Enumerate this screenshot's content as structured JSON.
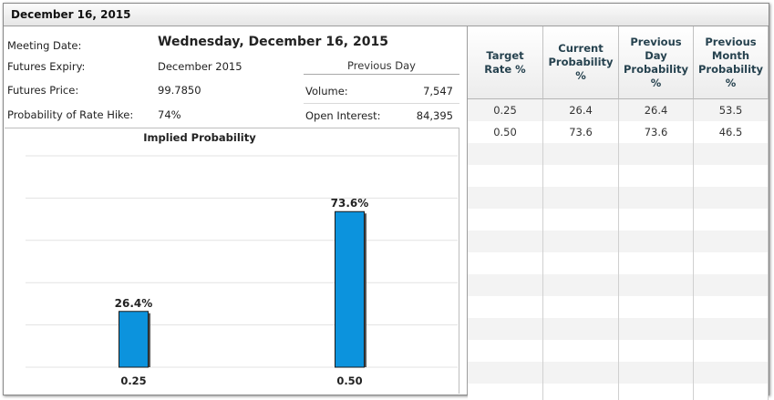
{
  "header": {
    "title": "December 16, 2015"
  },
  "info": {
    "meeting_date_label": "Meeting Date:",
    "meeting_date_value": "Wednesday, December 16, 2015",
    "futures_expiry_label": "Futures Expiry:",
    "futures_expiry_value": "December 2015",
    "futures_price_label": "Futures Price:",
    "futures_price_value": "99.7850",
    "rate_hike_label": "Probability of Rate Hike:",
    "rate_hike_value": "74%",
    "previous_day_heading": "Previous Day",
    "volume_label": "Volume:",
    "volume_value": "7,547",
    "open_interest_label": "Open Interest:",
    "open_interest_value": "84,395"
  },
  "table": {
    "headers": [
      [
        "Target",
        "Rate %"
      ],
      [
        "Current",
        "Probability",
        "%"
      ],
      [
        "Previous",
        "Day",
        "Probability",
        "%"
      ],
      [
        "Previous",
        "Month",
        "Probability",
        "%"
      ]
    ],
    "rows": [
      [
        "0.25",
        "26.4",
        "26.4",
        "53.5"
      ],
      [
        "0.50",
        "73.6",
        "73.6",
        "46.5"
      ]
    ],
    "empty_rows": 12
  },
  "chart_data": {
    "type": "bar",
    "title": "Implied Probability",
    "categories": [
      "0.25",
      "0.50"
    ],
    "values": [
      26.4,
      73.6
    ],
    "data_labels": [
      "26.4%",
      "73.6%"
    ],
    "ylim": [
      0,
      100
    ],
    "grid": true,
    "bar_color": "#0c93dd"
  }
}
